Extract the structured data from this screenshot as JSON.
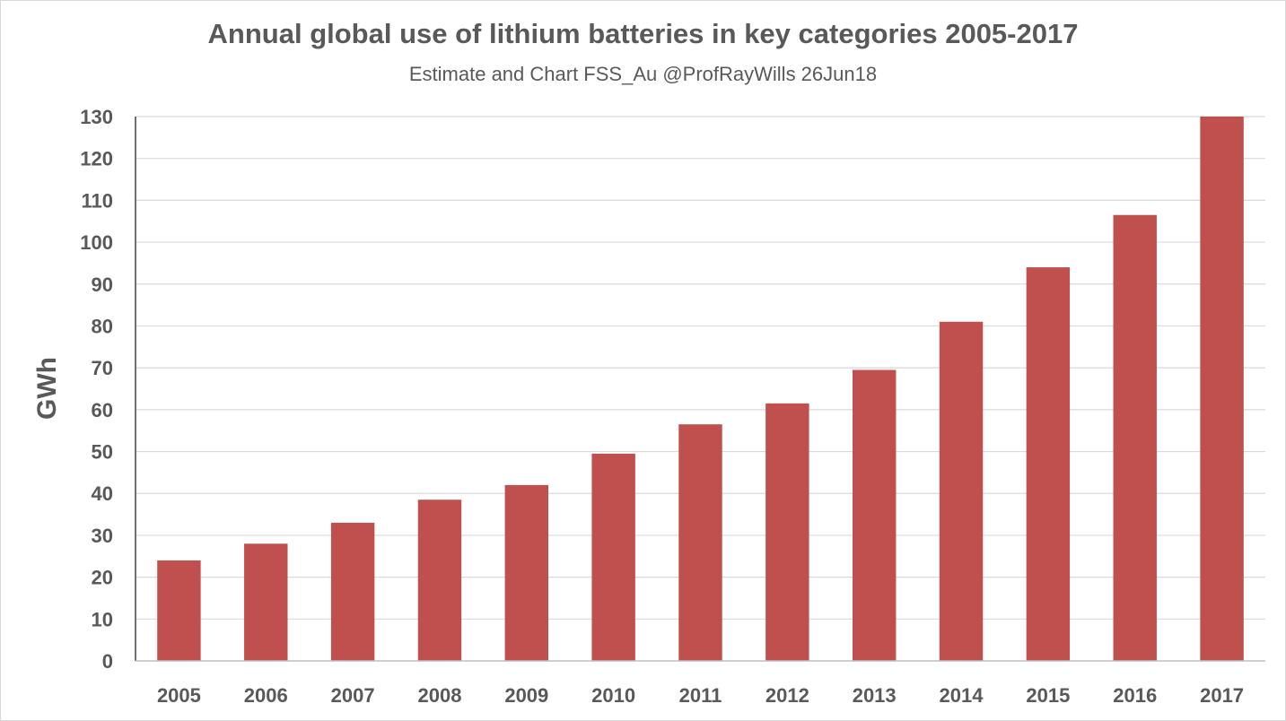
{
  "chart_data": {
    "type": "bar",
    "title": "Annual global use of lithium batteries in key categories 2005-2017",
    "subtitle": "Estimate and Chart FSS_Au @ProfRayWills 26Jun18",
    "xlabel": "",
    "ylabel": "GWh",
    "categories": [
      "2005",
      "2006",
      "2007",
      "2008",
      "2009",
      "2010",
      "2011",
      "2012",
      "2013",
      "2014",
      "2015",
      "2016",
      "2017"
    ],
    "values": [
      24,
      28,
      33,
      38.5,
      42,
      49.5,
      56.5,
      61.5,
      69.5,
      81,
      94,
      106.5,
      130
    ],
    "ylim": [
      0,
      130
    ],
    "yticks": [
      0,
      10,
      20,
      30,
      40,
      50,
      60,
      70,
      80,
      90,
      100,
      110,
      120,
      130
    ],
    "grid": true,
    "legend": "none",
    "bar_color": "#c0504d",
    "grid_color": "#d9d9d9",
    "text_color": "#595959"
  }
}
